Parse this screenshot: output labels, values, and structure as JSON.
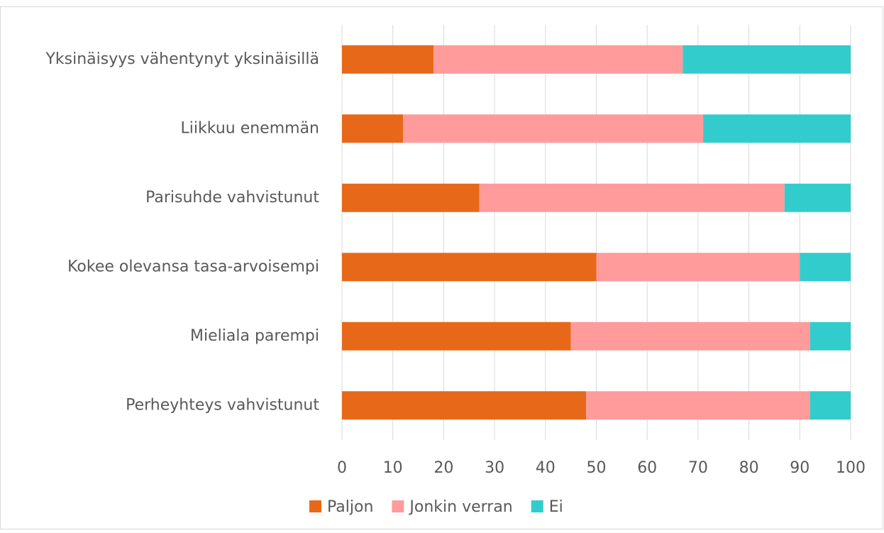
{
  "chart_data": {
    "type": "bar",
    "orientation": "horizontal",
    "stacked": true,
    "categories": [
      "Yksinäisyys vähentynyt yksinäisillä",
      "Liikkuu enemmän",
      "Parisuhde vahvistunut",
      "Kokee olevansa tasa-arvoisempi",
      "Mieliala parempi",
      "Perheyhteys vahvistunut"
    ],
    "series": [
      {
        "name": "Paljon",
        "color": "#e8681a",
        "values": [
          18,
          12,
          27,
          50,
          45,
          48
        ]
      },
      {
        "name": "Jonkin verran",
        "color": "#ff9b9b",
        "values": [
          49,
          59,
          60,
          40,
          47,
          44
        ]
      },
      {
        "name": "Ei",
        "color": "#33cccc",
        "values": [
          33,
          29,
          13,
          10,
          8,
          8
        ]
      }
    ],
    "xlim": [
      0,
      100
    ],
    "xticks": [
      0,
      10,
      20,
      30,
      40,
      50,
      60,
      70,
      80,
      90,
      100
    ],
    "grid": true,
    "legend": "bottom"
  }
}
